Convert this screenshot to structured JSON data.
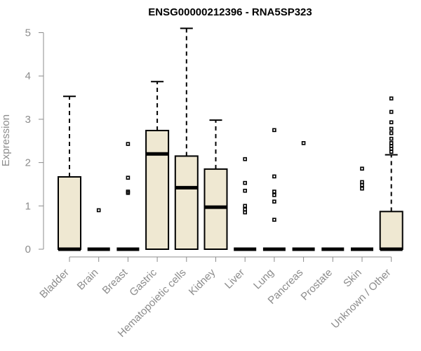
{
  "chart_data": {
    "type": "boxplot",
    "title": "ENSG00000212396 - RNA5SP323",
    "xlabel": "",
    "ylabel": "Expression",
    "ylim": [
      0,
      5
    ],
    "yticks": [
      "0",
      "1",
      "2",
      "3",
      "4",
      "5"
    ],
    "box_fill": "#efe8d2",
    "categories": [
      "Bladder",
      "Brain",
      "Breast",
      "Gastric",
      "Hematopoietic cells",
      "Kidney",
      "Liver",
      "Lung",
      "Pancreas",
      "Prostate",
      "Skin",
      "Unknown / Other"
    ],
    "boxes": [
      {
        "name": "Bladder",
        "q1": 0,
        "median": 0,
        "q3": 1.67,
        "whisker_low": 0,
        "whisker_high": 3.53,
        "outliers": []
      },
      {
        "name": "Brain",
        "q1": 0,
        "median": 0,
        "q3": 0,
        "whisker_low": 0,
        "whisker_high": 0,
        "outliers": [
          0.9
        ]
      },
      {
        "name": "Breast",
        "q1": 0,
        "median": 0,
        "q3": 0,
        "whisker_low": 0,
        "whisker_high": 0,
        "outliers": [
          2.43,
          1.65,
          1.33,
          1.3
        ]
      },
      {
        "name": "Gastric",
        "q1": 0,
        "median": 2.2,
        "q3": 2.74,
        "whisker_low": 0,
        "whisker_high": 3.87,
        "outliers": []
      },
      {
        "name": "Hematopoietic cells",
        "q1": 0,
        "median": 1.42,
        "q3": 2.15,
        "whisker_low": 0,
        "whisker_high": 5.1,
        "outliers": []
      },
      {
        "name": "Kidney",
        "q1": 0,
        "median": 0.97,
        "q3": 1.85,
        "whisker_low": 0,
        "whisker_high": 2.98,
        "outliers": []
      },
      {
        "name": "Liver",
        "q1": 0,
        "median": 0,
        "q3": 0,
        "whisker_low": 0,
        "whisker_high": 0,
        "outliers": [
          2.08,
          1.53,
          1.35,
          1.0,
          0.92,
          0.85
        ]
      },
      {
        "name": "Lung",
        "q1": 0,
        "median": 0,
        "q3": 0,
        "whisker_low": 0,
        "whisker_high": 0,
        "outliers": [
          2.75,
          1.68,
          1.33,
          1.25,
          1.1,
          0.68
        ]
      },
      {
        "name": "Pancreas",
        "q1": 0,
        "median": 0,
        "q3": 0,
        "whisker_low": 0,
        "whisker_high": 0,
        "outliers": [
          2.45
        ]
      },
      {
        "name": "Prostate",
        "q1": 0,
        "median": 0,
        "q3": 0,
        "whisker_low": 0,
        "whisker_high": 0,
        "outliers": []
      },
      {
        "name": "Skin",
        "q1": 0,
        "median": 0,
        "q3": 0,
        "whisker_low": 0,
        "whisker_high": 0,
        "outliers": [
          1.86,
          1.55,
          1.48,
          1.4
        ]
      },
      {
        "name": "Unknown / Other",
        "q1": 0,
        "median": 0,
        "q3": 0.87,
        "whisker_low": 0,
        "whisker_high": 2.18,
        "outliers": [
          3.48,
          3.17,
          2.93,
          2.78,
          2.68,
          2.55,
          2.45,
          2.38,
          2.32,
          2.25
        ]
      }
    ]
  }
}
